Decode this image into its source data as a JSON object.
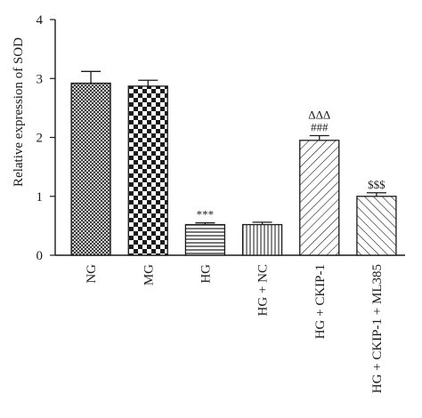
{
  "chart_data": {
    "type": "bar",
    "ylabel": "Relative expression of SOD",
    "xlabel": "",
    "ylim": [
      0,
      4
    ],
    "yticks": [
      0,
      1,
      2,
      3,
      4
    ],
    "categories": [
      "NG",
      "MG",
      "HG",
      "HG + NC",
      "HG + CKIP-1",
      "HG + CKIP-1 + ML385"
    ],
    "values": [
      2.92,
      2.87,
      0.52,
      0.52,
      1.95,
      1.0
    ],
    "errors": [
      0.2,
      0.1,
      0.03,
      0.04,
      0.08,
      0.06
    ],
    "annotations": [
      {
        "category_index": 2,
        "lines": [
          "***"
        ]
      },
      {
        "category_index": 4,
        "lines": [
          "ΔΔΔ",
          "###"
        ]
      },
      {
        "category_index": 5,
        "lines": [
          "$$$"
        ]
      }
    ],
    "bar_patterns": [
      "fine-crosshatch",
      "checkerboard",
      "horizontal-lines",
      "vertical-lines",
      "diagonal-lines",
      "reverse-diagonal-lines"
    ],
    "colors": {
      "ink": "#1a1a1a",
      "background": "#ffffff"
    },
    "grid": false,
    "legend": "none"
  }
}
